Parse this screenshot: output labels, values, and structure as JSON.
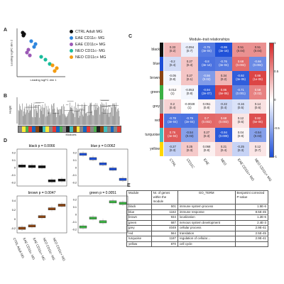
{
  "panel_labels": {
    "a": "A",
    "b": "B",
    "c": "C",
    "d": "D",
    "e": "E"
  },
  "panel_a": {
    "xlabel": "Leading logFC dim 1",
    "ylabel": "Leading logFC dim 2",
    "overlay_text": "",
    "legend": [
      {
        "label": "CTRL Adult MG",
        "color": "#111111"
      },
      {
        "label": "EAE CD11c- MG",
        "color": "#2e86de"
      },
      {
        "label": "EAE CD11c+ MG",
        "color": "#9b59b6"
      },
      {
        "label": "NEO CD11c- MG",
        "color": "#1abc9c"
      },
      {
        "label": "NEO CD11c+ MG",
        "color": "#f39c12"
      }
    ]
  },
  "panel_b": {
    "ylabel": "Height",
    "xlabel": "Modules",
    "color_bar": [
      "#888888",
      "#ffeb3b",
      "#4caf50",
      "#e53935",
      "#1565c0",
      "#8b4513",
      "#222222",
      "#40c0c0",
      "#ffeb3b",
      "#888888",
      "#e53935",
      "#1565c0",
      "#4caf50",
      "#888888",
      "#222222",
      "#40c0c0",
      "#8b4513",
      "#ffeb3b",
      "#888888",
      "#1565c0",
      "#e53935",
      "#888888",
      "#4caf50",
      "#222222",
      "#8b4513",
      "#40c0c0",
      "#888888",
      "#1565c0",
      "#888888",
      "#e53935"
    ]
  },
  "panel_c": {
    "title": "Module–trait relationships",
    "rows": [
      {
        "label": "black",
        "color": "#111111"
      },
      {
        "label": "blue",
        "color": "#1e4fd8"
      },
      {
        "label": "brown",
        "color": "#8b4513"
      },
      {
        "label": "green",
        "color": "#3cb043"
      },
      {
        "label": "grey",
        "color": "#9e9e9e"
      },
      {
        "label": "red",
        "color": "#d62728"
      },
      {
        "label": "turquoise",
        "color": "#40c0c0"
      },
      {
        "label": "yellow",
        "color": "#ffd700"
      }
    ],
    "columns": [
      "CTRL",
      "CD11C",
      "EAE",
      "NEO",
      "EAE CD11c+ MG",
      "NEO CD11c+ MG"
    ],
    "cells": [
      [
        "0.33\n(0.2)",
        "-0.094\n(0.7)",
        "-0.75\n(3e-04)",
        "-0.99\n(3e-16)",
        "0.51\n(0.04)",
        "0.51\n(0.04)"
      ],
      [
        "-0.2\n(0.4)",
        "0.27\n(0.3)",
        "-0.8\n(3e-14)",
        "-0.76\n(3e-04)",
        "0.68\n(0.003)",
        "-0.66\n(0.004)"
      ],
      [
        "-0.05\n(0.8)",
        "0.27\n(0.1)",
        "-0.56\n(0.02)",
        "0.34\n(0.2)",
        "-0.92\n(3e-06)",
        "0.86\n(1e-05)"
      ],
      [
        "0.012\n(1)",
        "-0.053\n(0.8)",
        "-0.94\n(2e-07)",
        "0.86\n(6e-06)",
        "-0.71\n(0.001)",
        "0.58\n(0.02)"
      ],
      [
        "0.2\n(0.4)",
        "-0.0028\n(1)",
        "0.051\n(0.8)",
        "-0.22\n(0.4)",
        "-0.16\n(0.5)",
        "0.14\n(0.6)"
      ],
      [
        "-0.78\n(3e-04)",
        "-0.79\n(2e-04)",
        "0.7\n(0.002)",
        "0.68\n(0.003)",
        "0.12\n(0.6)",
        "0.82\n(5e-05)"
      ],
      [
        "0.76\n(4e-04)",
        "-0.54\n(0.03)",
        "0.27\n(0.3)",
        "-0.94\n(0.009)",
        "0.04\n(0.9)",
        "-0.54\n(0.03)"
      ],
      [
        "-0.27\n(0.3)",
        "0.25\n(0.3)",
        "0.068\n(0.8)",
        "0.21\n(0.4)",
        "-0.25\n(0.3)",
        "0.12\n(0.7)"
      ]
    ],
    "cell_values": [
      [
        0.33,
        -0.094,
        -0.75,
        -0.99,
        0.51,
        0.51
      ],
      [
        -0.2,
        0.27,
        -0.8,
        -0.76,
        0.68,
        -0.66
      ],
      [
        -0.05,
        0.27,
        -0.56,
        0.34,
        -0.92,
        0.86
      ],
      [
        0.012,
        -0.053,
        -0.94,
        0.86,
        -0.71,
        0.58
      ],
      [
        0.2,
        -0.0028,
        0.051,
        -0.22,
        -0.16,
        0.14
      ],
      [
        -0.78,
        -0.79,
        0.7,
        0.68,
        0.12,
        0.82
      ],
      [
        0.76,
        -0.54,
        0.27,
        -0.94,
        0.04,
        -0.54
      ],
      [
        -0.27,
        0.25,
        0.068,
        0.21,
        -0.25,
        0.12
      ]
    ],
    "scale_ticks": [
      "1",
      "0.5",
      "0",
      "-0.5",
      "-1"
    ]
  },
  "panel_d": {
    "subtitles": [
      "black p = 0.0066",
      "blue p = 0.0062",
      "brown p = 0.0047",
      "green p = 0.0051"
    ],
    "xlabels": [
      "CTRL Adult MG",
      "EAE CD11c- MG",
      "EAE CD11c+ MG",
      "NEO CD11c- MG",
      "NEO CD11c+ MG"
    ],
    "panels": [
      {
        "color": "#111111",
        "ticks": [
          "0.2",
          "0.1",
          "0",
          "-0.1",
          "-0.2"
        ],
        "ylim": [
          -0.25,
          0.25
        ],
        "values": [
          0.02,
          0.015,
          0.01,
          -0.18,
          -0.17
        ]
      },
      {
        "color": "#1e4fd8",
        "ticks": [
          "0.2",
          "0.1",
          "0",
          "-0.1",
          "-0.2"
        ],
        "ylim": [
          -0.25,
          0.25
        ],
        "values": [
          0.18,
          0.12,
          0.05,
          -0.02,
          -0.16
        ]
      },
      {
        "color": "#8b4513",
        "ticks": [
          "0.4",
          "0.2",
          "0",
          "-0.2"
        ],
        "ylim": [
          -0.3,
          0.5
        ],
        "values": [
          -0.2,
          -0.15,
          0.05,
          0.22,
          0.3
        ]
      },
      {
        "color": "#3cb043",
        "ticks": [
          "0.2",
          "0.1",
          "0",
          "-0.1",
          "-0.2"
        ],
        "ylim": [
          -0.25,
          0.25
        ],
        "values": [
          -0.17,
          -0.05,
          -0.1,
          0.17,
          0.15
        ]
      }
    ]
  },
  "panel_e": {
    "headers": [
      "Module",
      "Nr. of genes within the module",
      "GO_TERM",
      "Benjamini corrected P-value"
    ],
    "rows": [
      [
        "black",
        "501",
        "immune system process",
        "1.5E-6"
      ],
      [
        "blue",
        "1162",
        "immune response",
        "8.5E-45"
      ],
      [
        "brown",
        "934",
        "localization",
        "1.2E-6"
      ],
      [
        "green",
        "687",
        "nervous system development",
        "2.4E-3"
      ],
      [
        "grey",
        "4049",
        "cellular process",
        "2.9E-41"
      ],
      [
        "red",
        "564",
        "translation",
        "2.5E-45"
      ],
      [
        "turquoise",
        "1187",
        "regulation of cellular…",
        "2.9E-41"
      ],
      [
        "yellow",
        "870",
        "cell cycle",
        ""
      ]
    ]
  }
}
